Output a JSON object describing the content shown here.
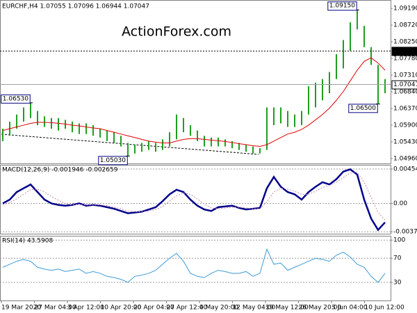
{
  "chart_data": [
    {
      "type": "ohlc",
      "title": "EURCHF,H4  1.07055 1.07096 1.06944 1.07047",
      "watermark": "ActionForex.com",
      "color": "#1f9e1f",
      "grid": false,
      "ylim": [
        1.0484,
        1.0937
      ],
      "yticks": [
        {
          "value": 1.0919,
          "label": "1.09190"
        },
        {
          "value": 1.0872,
          "label": "1.08720"
        },
        {
          "value": 1.0825,
          "label": "1.08250"
        },
        {
          "value": 1.0778,
          "label": "1.07780"
        },
        {
          "value": 1.0731,
          "label": "1.07310"
        },
        {
          "value": 1.0684,
          "label": "1.06840"
        },
        {
          "value": 1.0637,
          "label": "1.06370"
        },
        {
          "value": 1.059,
          "label": "1.05900"
        },
        {
          "value": 1.0543,
          "label": "1.05430"
        },
        {
          "value": 1.0496,
          "label": "1.04960"
        }
      ],
      "high": [
        1.058,
        1.06,
        1.062,
        1.064,
        1.0653,
        1.063,
        1.0615,
        1.061,
        1.061,
        1.0605,
        1.06,
        1.0595,
        1.0595,
        1.059,
        1.058,
        1.0575,
        1.057,
        1.056,
        1.054,
        1.0535,
        1.054,
        1.0545,
        1.054,
        1.055,
        1.057,
        1.062,
        1.061,
        1.059,
        1.0575,
        1.056,
        1.0555,
        1.0555,
        1.055,
        1.0545,
        1.054,
        1.0535,
        1.053,
        1.0525,
        1.064,
        1.064,
        1.064,
        1.063,
        1.062,
        1.063,
        1.07,
        1.071,
        1.072,
        1.074,
        1.079,
        1.083,
        1.088,
        1.0915,
        1.087,
        1.081,
        1.076,
        1.072
      ],
      "low": [
        1.0545,
        1.056,
        1.058,
        1.06,
        1.061,
        1.059,
        1.0585,
        1.058,
        1.0575,
        1.058,
        1.057,
        1.0565,
        1.0565,
        1.056,
        1.0555,
        1.0545,
        1.054,
        1.053,
        1.0503,
        1.051,
        1.0515,
        1.052,
        1.0515,
        1.052,
        1.053,
        1.055,
        1.057,
        1.056,
        1.0545,
        1.053,
        1.053,
        1.053,
        1.053,
        1.0525,
        1.052,
        1.0515,
        1.051,
        1.051,
        1.052,
        1.059,
        1.0595,
        1.0585,
        1.0585,
        1.059,
        1.062,
        1.064,
        1.066,
        1.068,
        1.072,
        1.075,
        1.08,
        1.086,
        1.081,
        1.076,
        1.065,
        1.068
      ],
      "ma": {
        "color": "#e00000",
        "values": [
          1.0575,
          1.058,
          1.0585,
          1.059,
          1.0595,
          1.0598,
          1.0598,
          1.0597,
          1.0595,
          1.0593,
          1.059,
          1.0588,
          1.0585,
          1.0582,
          1.058,
          1.0575,
          1.057,
          1.0565,
          1.056,
          1.0555,
          1.055,
          1.0545,
          1.0542,
          1.054,
          1.054,
          1.0545,
          1.055,
          1.0552,
          1.0552,
          1.055,
          1.0548,
          1.0546,
          1.0544,
          1.0541,
          1.0538,
          1.0535,
          1.0532,
          1.053,
          1.0535,
          1.0545,
          1.0555,
          1.0565,
          1.057,
          1.0578,
          1.059,
          1.0605,
          1.062,
          1.0638,
          1.066,
          1.0685,
          1.0715,
          1.0745,
          1.077,
          1.078,
          1.0765,
          1.0745
        ]
      },
      "annotations": [
        {
          "value": 1.0653,
          "label": "1.06530"
        },
        {
          "value": 1.0503,
          "label": "1.05030"
        },
        {
          "value": 1.0915,
          "label": "1.09150"
        },
        {
          "value": 1.065,
          "label": "1.06500"
        }
      ],
      "hline": {
        "value": 1.0799,
        "label": "1.07990"
      },
      "last": {
        "value": 1.07047,
        "label": "1.07047"
      }
    },
    {
      "type": "line",
      "title": "MACD(12,26,9) -0.001946 -0.002659",
      "grid": true,
      "ylim": [
        -0.004,
        0.005
      ],
      "yticks": [
        0.00454,
        {
          "value": 0,
          "label": "0.00"
        },
        -0.003745
      ],
      "series": [
        {
          "color": "#00008b",
          "width": 2.5,
          "values": [
            0,
            0.0005,
            0.0015,
            0.002,
            0.0025,
            0.0015,
            0.0005,
            0,
            -0.0002,
            -0.0003,
            -0.0002,
            0,
            -0.0003,
            -0.0002,
            -0.0003,
            -0.0005,
            -0.0007,
            -0.001,
            -0.0013,
            -0.0012,
            -0.0011,
            -0.0008,
            -0.0005,
            0.0003,
            0.0012,
            0.0018,
            0.0015,
            0.0005,
            -0.0003,
            -0.0008,
            -0.001,
            -0.0005,
            -0.0004,
            -0.0003,
            -0.0006,
            -0.0008,
            -0.0007,
            -0.0006,
            0.002,
            0.0035,
            0.0022,
            0.0015,
            0.0012,
            0.0005,
            0.0015,
            0.0022,
            0.0028,
            0.0025,
            0.0032,
            0.0042,
            0.0045,
            0.0038,
            0.0005,
            -0.002,
            -0.0035,
            -0.0025
          ]
        },
        {
          "color": "#c98aa8",
          "width": 1,
          "dashed": true,
          "values": [
            -0.0002,
            0.0001,
            0.0006,
            0.0012,
            0.0018,
            0.0019,
            0.0015,
            0.0009,
            0.0004,
            0,
            -0.0002,
            -0.0001,
            -0.0002,
            -0.0002,
            -0.0002,
            -0.0003,
            -0.0005,
            -0.0007,
            -0.001,
            -0.0011,
            -0.0011,
            -0.001,
            -0.0008,
            -0.0004,
            0.0003,
            0.001,
            0.0014,
            0.0012,
            0.0006,
            -0.0001,
            -0.0006,
            -0.0007,
            -0.0006,
            -0.0005,
            -0.0005,
            -0.0006,
            -0.0007,
            -0.0007,
            0.0002,
            0.0015,
            0.002,
            0.0019,
            0.0016,
            0.0012,
            0.0012,
            0.0016,
            0.0021,
            0.0024,
            0.0028,
            0.0034,
            0.004,
            0.0041,
            0.0028,
            0.0008,
            -0.0012,
            -0.0022
          ]
        }
      ]
    },
    {
      "type": "line",
      "title": "RSI(14) 43.5908",
      "grid": true,
      "ylim": [
        0,
        106
      ],
      "yticks": [
        100,
        70,
        30
      ],
      "series": [
        {
          "color": "#3d9ad6",
          "width": 1,
          "values": [
            55,
            60,
            65,
            68,
            65,
            55,
            52,
            50,
            52,
            48,
            50,
            52,
            45,
            48,
            45,
            40,
            38,
            35,
            30,
            40,
            42,
            45,
            50,
            60,
            70,
            78,
            65,
            45,
            40,
            38,
            45,
            50,
            48,
            45,
            45,
            48,
            40,
            45,
            85,
            60,
            62,
            50,
            55,
            60,
            65,
            70,
            68,
            65,
            75,
            80,
            72,
            60,
            55,
            40,
            30,
            45
          ]
        }
      ],
      "xtick_labels": [
        "19 Mar 2020",
        "27 Mar 04:00",
        "3 Apr 12:00",
        "10 Apr 20:00",
        "20 Apr 04:00",
        "27 Apr 12:00",
        "4 May 20:00",
        "12 May 04:00",
        "19 May 12:00",
        "26 May 20:00",
        "3 Jun 04:00",
        "10 Jun 12:00"
      ]
    }
  ]
}
